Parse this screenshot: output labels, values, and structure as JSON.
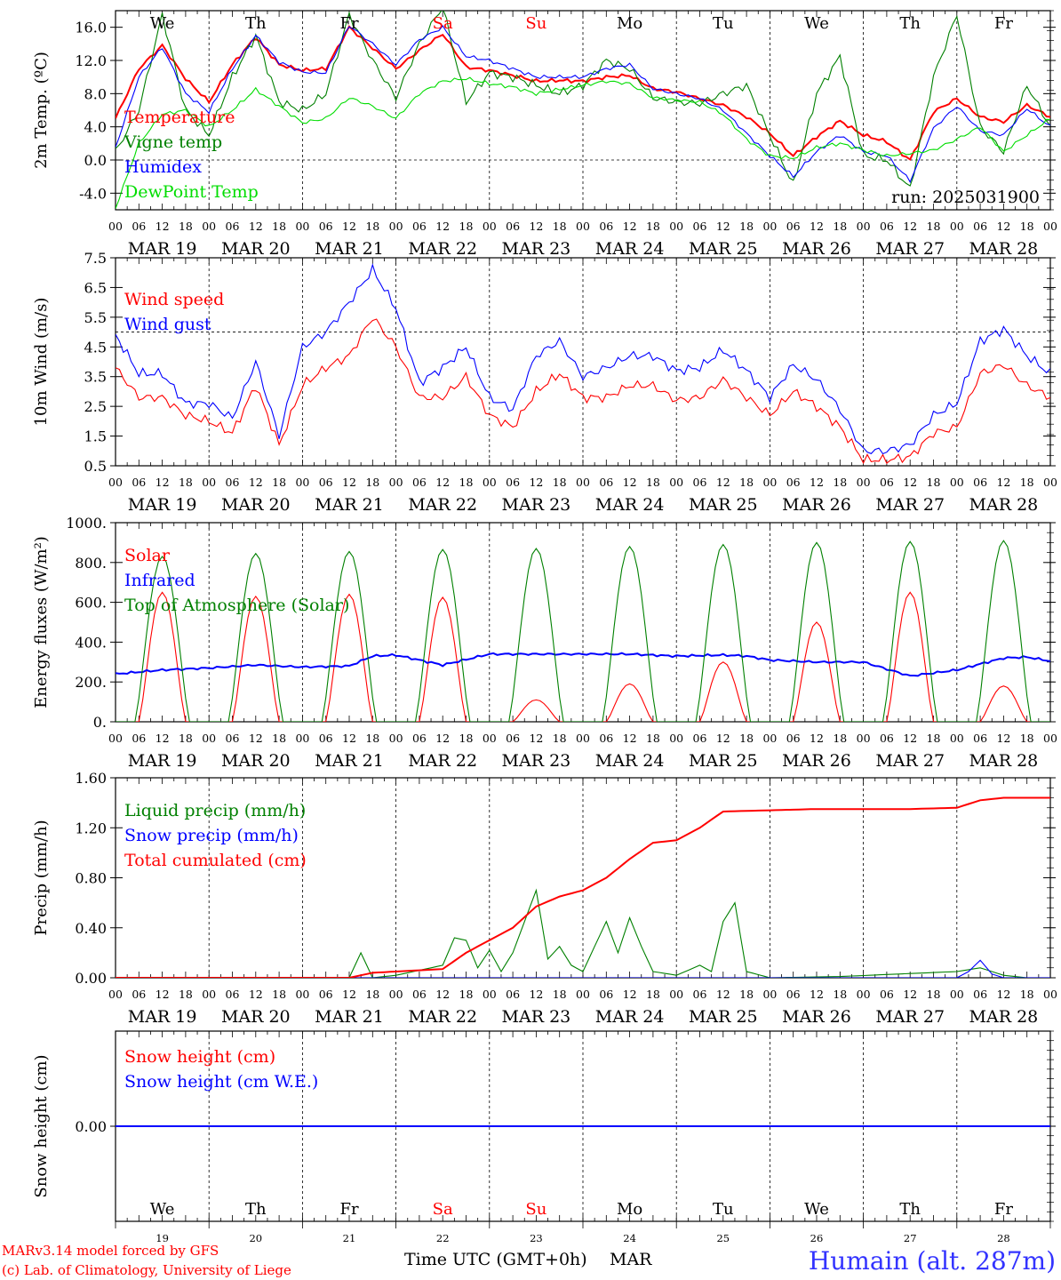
{
  "meta": {
    "run_label": "run: 2025031900",
    "model_credit": "MARv3.14 model forced by GFS",
    "lab_credit": "(c) Lab. of Climatology, University of Liege",
    "time_axis_label": "Time UTC (GMT+0h)",
    "month_label": "MAR",
    "station": "Humain (alt. 287m)",
    "colors": {
      "red": "#ff0000",
      "blue": "#0000ff",
      "darkgreen": "#008000",
      "lightgreen": "#00dd00",
      "grid": "#000000"
    }
  },
  "days": {
    "weekdays": [
      "We",
      "Th",
      "Fr",
      "Sa",
      "Su",
      "Mo",
      "Tu",
      "We",
      "Th",
      "Fr"
    ],
    "weekend_flags": [
      false,
      false,
      false,
      true,
      true,
      false,
      false,
      false,
      false,
      false
    ],
    "day_numbers": [
      "19",
      "20",
      "21",
      "22",
      "23",
      "24",
      "25",
      "26",
      "27",
      "28"
    ],
    "date_labels": [
      "MAR 19",
      "MAR 20",
      "MAR 21",
      "MAR 22",
      "MAR 23",
      "MAR 24",
      "MAR 25",
      "MAR 26",
      "MAR 27",
      "MAR 28"
    ],
    "hour_ticks": [
      "00",
      "06",
      "12",
      "18"
    ],
    "final_hour_tick": "00"
  },
  "chart_data": [
    {
      "type": "line",
      "id": "temp",
      "ylabel": "2m Temp. (ºC)",
      "ylim": [
        -6,
        18
      ],
      "yticks": [
        "-4.0",
        "0.0",
        "4.0",
        "8.0",
        "12.0",
        "16.0"
      ],
      "ytick_values": [
        -4,
        0,
        4,
        8,
        12,
        16
      ],
      "ref_line": 0,
      "x_unit": "hours since MAR 19 00 UTC",
      "series": [
        {
          "name": "Temperature",
          "color": "red",
          "x": [
            0,
            6,
            12,
            18,
            24,
            30,
            36,
            42,
            48,
            54,
            60,
            66,
            72,
            78,
            84,
            90,
            96,
            102,
            108,
            114,
            120,
            126,
            132,
            138,
            144,
            150,
            156,
            162,
            168,
            174,
            180,
            186,
            192,
            198,
            204,
            210,
            216,
            222,
            228,
            234,
            240
          ],
          "y": [
            5.0,
            11.0,
            13.8,
            9.8,
            7.0,
            11.5,
            14.8,
            11.5,
            10.8,
            11.0,
            16.0,
            13.5,
            11.0,
            13.2,
            15.2,
            11.2,
            10.8,
            10.2,
            9.5,
            9.6,
            9.5,
            10.0,
            10.2,
            8.6,
            8.2,
            7.4,
            6.6,
            5.2,
            3.2,
            0.5,
            2.8,
            4.7,
            3.0,
            2.2,
            0.0,
            5.8,
            7.4,
            5.2,
            4.6,
            6.6,
            5.2
          ]
        },
        {
          "name": "Vigne temp",
          "color": "darkgreen",
          "x": [
            0,
            6,
            12,
            18,
            24,
            30,
            36,
            42,
            48,
            54,
            60,
            66,
            72,
            78,
            84,
            90,
            96,
            102,
            108,
            114,
            120,
            126,
            132,
            138,
            144,
            150,
            156,
            162,
            168,
            174,
            180,
            186,
            192,
            198,
            204,
            210,
            216,
            222,
            228,
            234,
            240
          ],
          "y": [
            1.0,
            6.0,
            17.5,
            6.0,
            3.0,
            10.0,
            15.0,
            7.0,
            6.0,
            8.0,
            17.5,
            12.0,
            7.5,
            14.0,
            18.5,
            7.0,
            10.5,
            10.0,
            9.0,
            8.0,
            9.0,
            12.0,
            11.0,
            7.5,
            7.0,
            6.8,
            8.0,
            9.0,
            3.0,
            -3.0,
            8.0,
            12.5,
            0.5,
            0.0,
            -3.5,
            10.0,
            17.5,
            4.0,
            1.0,
            9.0,
            4.0
          ]
        },
        {
          "name": "Humidex",
          "color": "blue",
          "x": [
            0,
            6,
            12,
            18,
            24,
            30,
            36,
            42,
            48,
            54,
            60,
            66,
            72,
            78,
            84,
            90,
            96,
            102,
            108,
            114,
            120,
            126,
            132,
            138,
            144,
            150,
            156,
            162,
            168,
            174,
            180,
            186,
            192,
            198,
            204,
            210,
            216,
            222,
            228,
            234,
            240
          ],
          "y": [
            1.5,
            10.0,
            13.6,
            8.0,
            5.8,
            11.0,
            15.0,
            11.8,
            10.6,
            10.5,
            16.2,
            14.0,
            11.5,
            14.5,
            16.0,
            12.5,
            12.0,
            11.0,
            10.0,
            10.0,
            10.0,
            11.0,
            11.5,
            8.6,
            8.0,
            7.4,
            6.0,
            3.2,
            0.5,
            -2.0,
            1.0,
            3.0,
            1.0,
            0.5,
            -2.5,
            3.8,
            6.5,
            3.5,
            3.0,
            6.2,
            4.0
          ]
        },
        {
          "name": "DewPoint Temp",
          "color": "lightgreen",
          "x": [
            0,
            6,
            12,
            18,
            24,
            30,
            36,
            42,
            48,
            54,
            60,
            66,
            72,
            78,
            84,
            90,
            96,
            102,
            108,
            114,
            120,
            126,
            132,
            138,
            144,
            150,
            156,
            162,
            168,
            174,
            180,
            186,
            192,
            198,
            204,
            210,
            216,
            222,
            228,
            234,
            240
          ],
          "y": [
            -5.8,
            2.0,
            5.5,
            6.0,
            4.0,
            6.0,
            8.5,
            6.5,
            4.5,
            5.0,
            7.5,
            6.5,
            5.0,
            8.0,
            9.5,
            9.8,
            9.2,
            8.8,
            8.0,
            8.5,
            9.0,
            9.5,
            9.2,
            7.5,
            7.2,
            7.0,
            5.5,
            2.5,
            0.5,
            0.2,
            1.5,
            2.0,
            1.2,
            0.5,
            0.8,
            1.2,
            2.5,
            4.0,
            1.0,
            3.0,
            5.0
          ]
        }
      ]
    },
    {
      "type": "line",
      "id": "wind",
      "ylabel": "10m Wind (m/s)",
      "ylim": [
        0.5,
        7.5
      ],
      "yticks": [
        "0.5",
        "1.5",
        "2.5",
        "3.5",
        "4.5",
        "5.5",
        "6.5",
        "7.5"
      ],
      "ytick_values": [
        0.5,
        1.5,
        2.5,
        3.5,
        4.5,
        5.5,
        6.5,
        7.5
      ],
      "ref_line": 5.0,
      "x_unit": "hours since MAR 19 00 UTC",
      "series": [
        {
          "name": "Wind speed",
          "color": "red",
          "x": [
            0,
            6,
            12,
            18,
            24,
            30,
            36,
            42,
            48,
            54,
            60,
            66,
            72,
            78,
            84,
            90,
            96,
            102,
            108,
            114,
            120,
            126,
            132,
            138,
            144,
            150,
            156,
            162,
            168,
            174,
            180,
            186,
            192,
            198,
            204,
            210,
            216,
            222,
            228,
            234,
            240
          ],
          "y": [
            3.8,
            2.8,
            2.8,
            2.2,
            2.0,
            1.6,
            3.2,
            1.2,
            3.2,
            3.8,
            4.2,
            5.5,
            4.5,
            2.8,
            2.8,
            3.5,
            2.2,
            1.8,
            3.0,
            3.6,
            2.8,
            2.8,
            3.2,
            3.2,
            2.7,
            2.8,
            3.4,
            2.8,
            2.2,
            3.0,
            2.5,
            1.8,
            0.7,
            0.7,
            0.8,
            1.6,
            1.8,
            3.6,
            3.9,
            3.2,
            2.8
          ]
        },
        {
          "name": "Wind gust",
          "color": "blue",
          "x": [
            0,
            6,
            12,
            18,
            24,
            30,
            36,
            42,
            48,
            54,
            60,
            66,
            72,
            78,
            84,
            90,
            96,
            102,
            108,
            114,
            120,
            126,
            132,
            138,
            144,
            150,
            156,
            162,
            168,
            174,
            180,
            186,
            192,
            198,
            204,
            210,
            216,
            222,
            228,
            234,
            240
          ],
          "y": [
            4.9,
            3.6,
            3.6,
            2.6,
            2.6,
            2.1,
            4.0,
            1.5,
            4.5,
            5.0,
            6.0,
            7.1,
            5.8,
            3.3,
            3.8,
            4.5,
            2.8,
            2.4,
            4.2,
            4.7,
            3.5,
            3.8,
            4.2,
            4.2,
            3.7,
            3.8,
            4.4,
            3.7,
            2.8,
            3.9,
            3.4,
            2.4,
            1.0,
            1.0,
            1.2,
            2.2,
            2.6,
            4.7,
            5.1,
            4.2,
            3.6
          ]
        }
      ]
    },
    {
      "type": "line",
      "id": "energy",
      "ylabel": "Energy fluxes (W/m²)",
      "ylim": [
        0,
        1000
      ],
      "yticks": [
        "0.",
        "200.",
        "400.",
        "600.",
        "800.",
        "1000."
      ],
      "ytick_values": [
        0,
        200,
        400,
        600,
        800,
        1000
      ],
      "x_unit": "hours since MAR 19 00 UTC",
      "series": [
        {
          "name": "Solar",
          "color": "red",
          "day_peaks": [
            650,
            630,
            640,
            625,
            110,
            190,
            300,
            500,
            650,
            180
          ]
        },
        {
          "name": "Infrared",
          "color": "blue",
          "x": [
            0,
            12,
            24,
            36,
            48,
            60,
            66,
            72,
            84,
            96,
            108,
            120,
            132,
            144,
            156,
            162,
            168,
            180,
            192,
            204,
            216,
            228,
            234,
            240
          ],
          "y": [
            240,
            260,
            270,
            285,
            275,
            280,
            330,
            335,
            285,
            340,
            340,
            340,
            340,
            330,
            335,
            330,
            310,
            300,
            300,
            230,
            260,
            320,
            325,
            305
          ]
        },
        {
          "name": "Top of Atmosphere (Solar)",
          "color": "darkgreen",
          "day_peaks": [
            830,
            845,
            855,
            865,
            870,
            880,
            890,
            900,
            905,
            910
          ]
        }
      ]
    },
    {
      "type": "line",
      "id": "precip",
      "ylabel": "Precip (mm/h)",
      "ylim": [
        0,
        1.6
      ],
      "yticks": [
        "0.00",
        "0.40",
        "0.80",
        "1.20",
        "1.60"
      ],
      "ytick_values": [
        0,
        0.4,
        0.8,
        1.2,
        1.6
      ],
      "x_unit": "hours since MAR 19 00 UTC",
      "series": [
        {
          "name": "Liquid precip (mm/h)",
          "color": "darkgreen",
          "x": [
            0,
            60,
            63,
            66,
            72,
            84,
            87,
            90,
            93,
            96,
            99,
            102,
            108,
            111,
            114,
            117,
            120,
            126,
            129,
            132,
            135,
            138,
            144,
            150,
            153,
            156,
            159,
            162,
            168,
            186,
            216,
            222,
            228,
            234,
            240
          ],
          "y": [
            0,
            0,
            0.2,
            0,
            0.02,
            0.1,
            0.32,
            0.3,
            0.08,
            0.22,
            0.05,
            0.2,
            0.7,
            0.15,
            0.25,
            0.1,
            0.05,
            0.45,
            0.2,
            0.48,
            0.25,
            0.05,
            0.02,
            0.1,
            0.05,
            0.45,
            0.6,
            0.05,
            0,
            0.01,
            0.05,
            0.08,
            0.02,
            0,
            0
          ]
        },
        {
          "name": "Snow precip (mm/h)",
          "color": "blue",
          "x": [
            0,
            216,
            219,
            222,
            225,
            228,
            240
          ],
          "y": [
            0,
            0,
            0.05,
            0.14,
            0.03,
            0,
            0
          ]
        },
        {
          "name": "Total cumulated (cm)",
          "color": "red",
          "x": [
            0,
            60,
            66,
            72,
            84,
            90,
            96,
            102,
            108,
            114,
            120,
            126,
            132,
            138,
            144,
            150,
            156,
            168,
            180,
            204,
            216,
            222,
            228,
            240
          ],
          "y": [
            0,
            0,
            0.04,
            0.05,
            0.07,
            0.2,
            0.3,
            0.4,
            0.57,
            0.65,
            0.7,
            0.8,
            0.95,
            1.08,
            1.1,
            1.2,
            1.33,
            1.34,
            1.35,
            1.35,
            1.36,
            1.42,
            1.44,
            1.44
          ]
        }
      ]
    },
    {
      "type": "line",
      "id": "snow",
      "ylabel": "Snow height (cm)",
      "ylim": [
        -1,
        1
      ],
      "yticks": [
        "0.00"
      ],
      "ytick_values": [
        0
      ],
      "x_unit": "hours since MAR 19 00 UTC",
      "series": [
        {
          "name": "Snow height (cm)",
          "color": "red",
          "x": [
            0,
            240
          ],
          "y": [
            0,
            0
          ]
        },
        {
          "name": "Snow height (cm W.E.)",
          "color": "blue",
          "x": [
            0,
            240
          ],
          "y": [
            0,
            0
          ]
        }
      ]
    }
  ]
}
